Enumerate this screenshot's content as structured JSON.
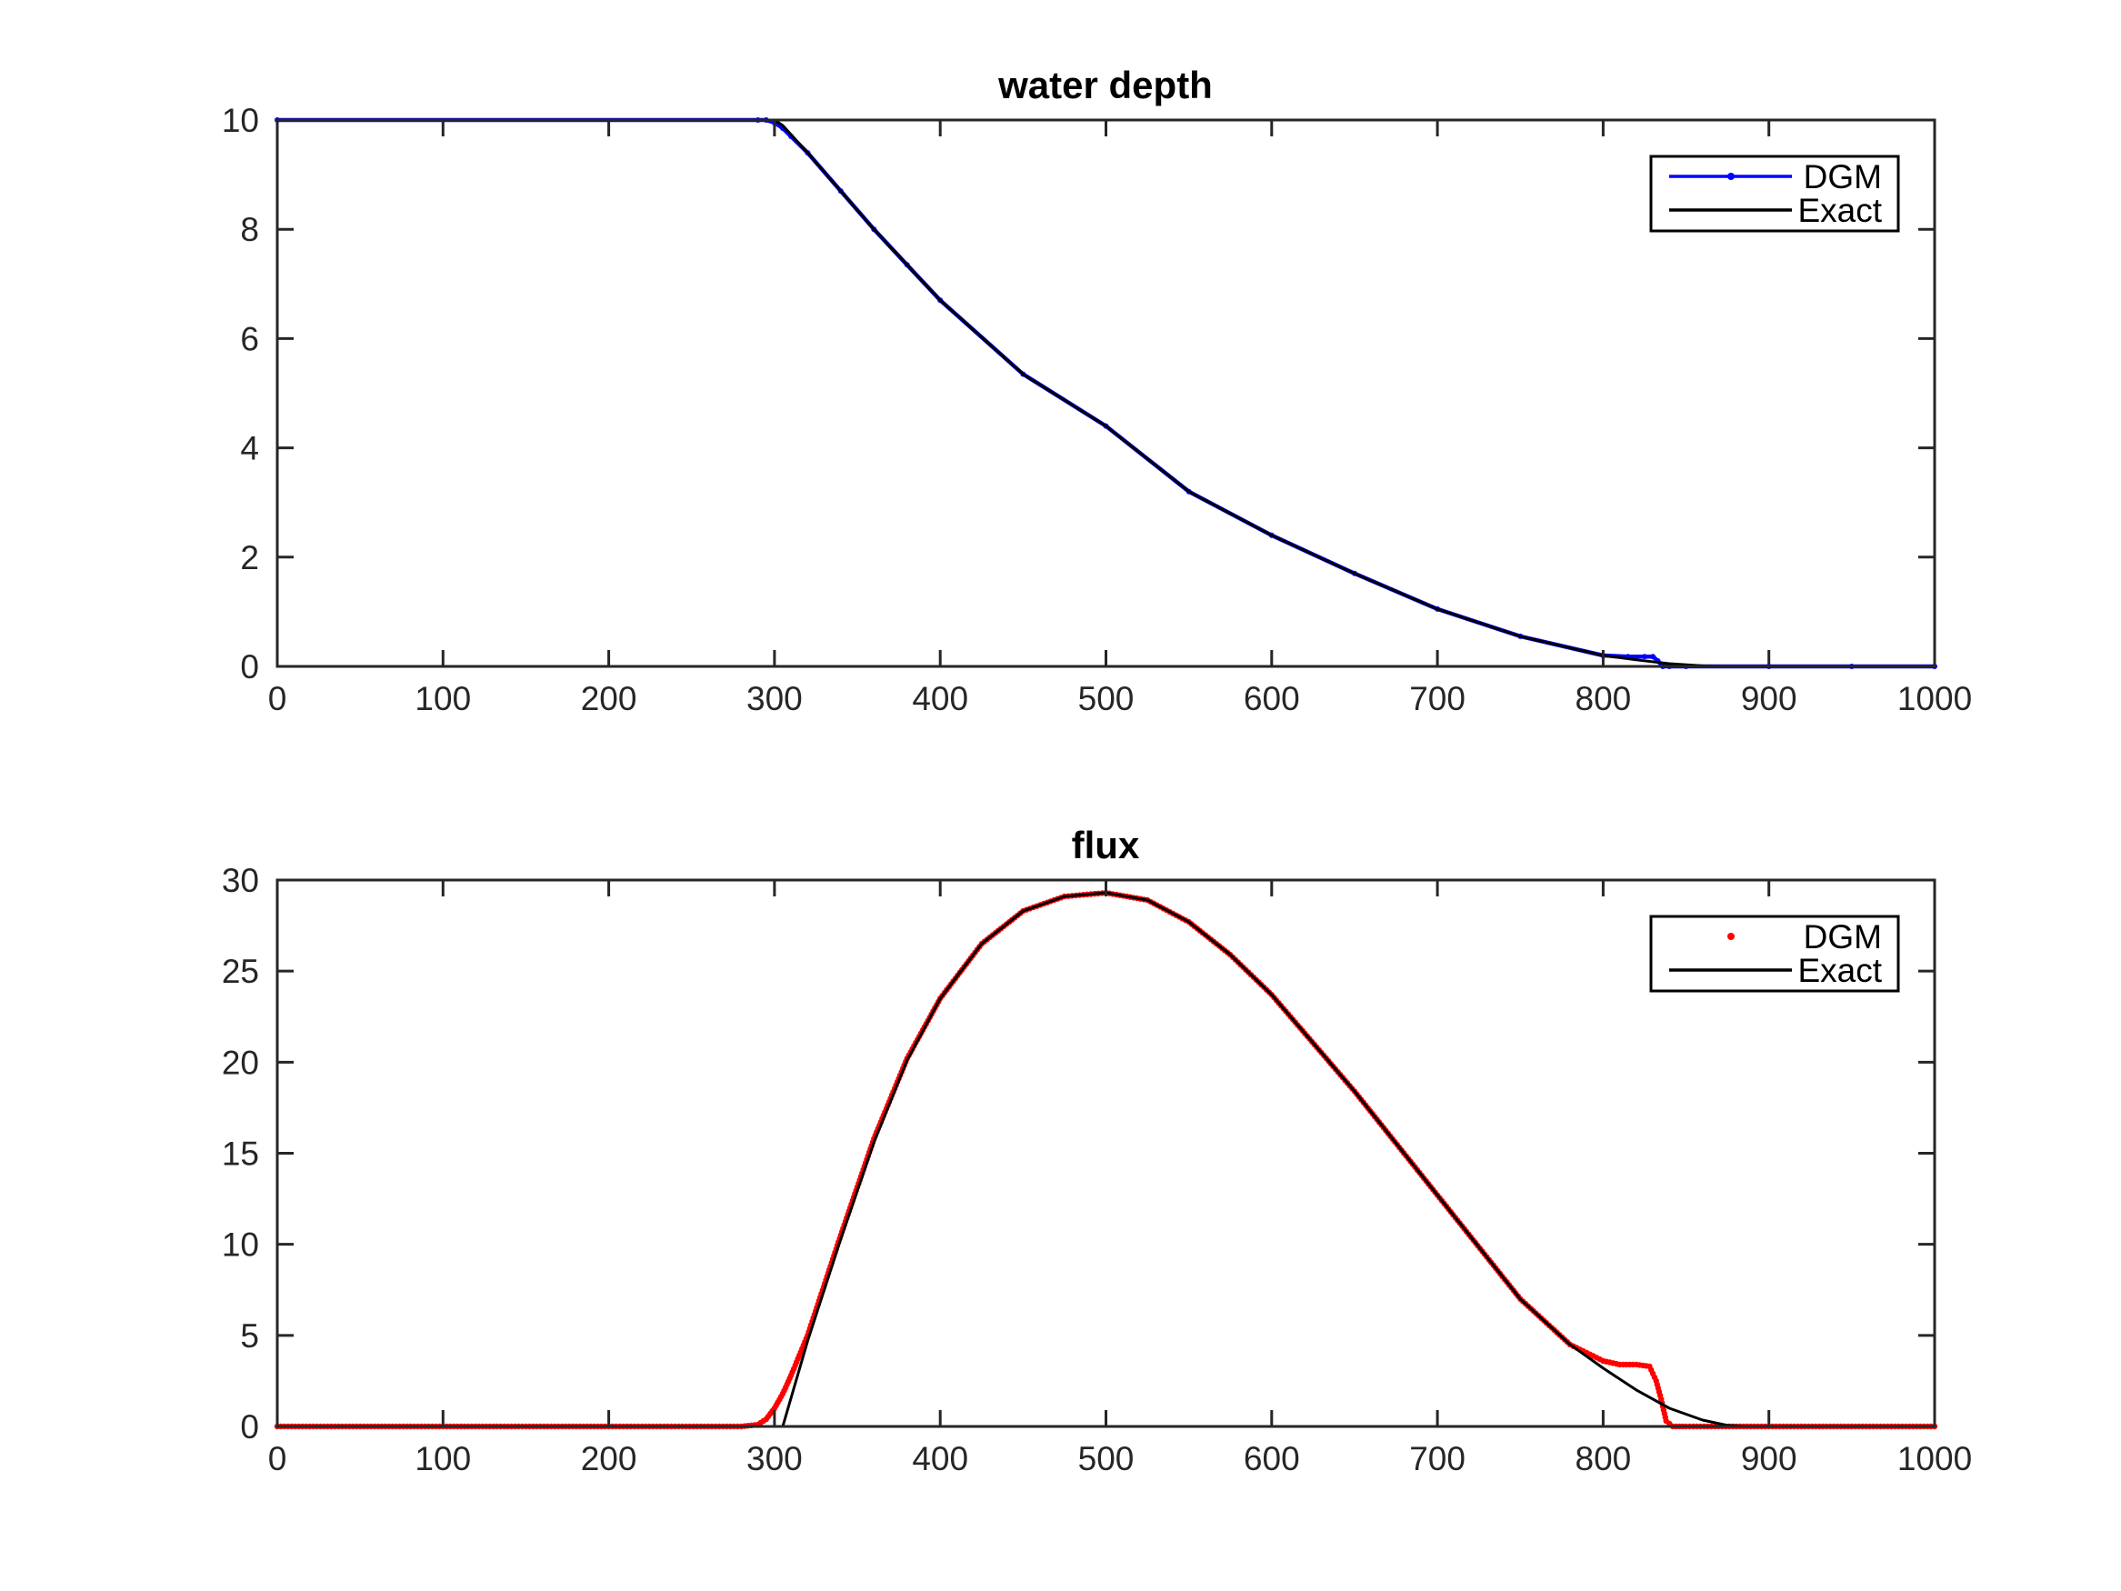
{
  "figure": {
    "background": "#ffffff",
    "axis_color": "#262626"
  },
  "chart_data": [
    {
      "type": "line",
      "title": "water depth",
      "xlabel": "",
      "ylabel": "",
      "xlim": [
        0,
        1000
      ],
      "ylim": [
        0,
        10
      ],
      "xticks": [
        0,
        100,
        200,
        300,
        400,
        500,
        600,
        700,
        800,
        900,
        1000
      ],
      "yticks": [
        0,
        2,
        4,
        6,
        8,
        10
      ],
      "grid": false,
      "legend_position": "top-right",
      "series": [
        {
          "name": "DGM",
          "style": "line-dot",
          "color": "#0000ff",
          "x": [
            0,
            290,
            295,
            300,
            305,
            310,
            320,
            340,
            360,
            380,
            400,
            450,
            500,
            550,
            600,
            650,
            700,
            750,
            800,
            815,
            825,
            830,
            833,
            836,
            840,
            850,
            900,
            950,
            1000
          ],
          "y": [
            10,
            10,
            10,
            9.95,
            9.85,
            9.7,
            9.4,
            8.7,
            8.0,
            7.35,
            6.7,
            5.35,
            4.4,
            3.2,
            2.4,
            1.7,
            1.05,
            0.55,
            0.2,
            0.18,
            0.18,
            0.18,
            0.1,
            0.0,
            0.0,
            0.0,
            0.0,
            0.0,
            0.0
          ]
        },
        {
          "name": "Exact",
          "style": "line",
          "color": "#000000",
          "x": [
            0,
            300,
            305,
            320,
            340,
            360,
            380,
            400,
            450,
            500,
            550,
            600,
            650,
            700,
            750,
            800,
            820,
            840,
            860,
            870,
            880,
            1000
          ],
          "y": [
            10,
            10,
            9.9,
            9.4,
            8.7,
            8.0,
            7.35,
            6.7,
            5.35,
            4.4,
            3.2,
            2.4,
            1.7,
            1.05,
            0.55,
            0.2,
            0.12,
            0.05,
            0.01,
            0.0,
            0.0,
            0.0
          ]
        }
      ]
    },
    {
      "type": "line",
      "title": "flux",
      "xlabel": "",
      "ylabel": "",
      "xlim": [
        0,
        1000
      ],
      "ylim": [
        0,
        30
      ],
      "xticks": [
        0,
        100,
        200,
        300,
        400,
        500,
        600,
        700,
        800,
        900,
        1000
      ],
      "yticks": [
        0,
        5,
        10,
        15,
        20,
        25,
        30
      ],
      "grid": false,
      "legend_position": "top-right",
      "series": [
        {
          "name": "DGM",
          "style": "dots",
          "color": "#ff0000",
          "x": [
            0,
            100,
            200,
            280,
            290,
            295,
            300,
            305,
            310,
            320,
            340,
            360,
            380,
            400,
            425,
            450,
            475,
            500,
            525,
            550,
            575,
            600,
            650,
            700,
            750,
            780,
            800,
            810,
            820,
            828,
            832,
            835,
            838,
            842,
            850,
            900,
            950,
            1000
          ],
          "y": [
            0,
            0,
            0,
            0,
            0.1,
            0.4,
            1.0,
            1.8,
            2.8,
            5.0,
            10.5,
            15.8,
            20.2,
            23.5,
            26.5,
            28.3,
            29.1,
            29.3,
            28.9,
            27.7,
            25.9,
            23.7,
            18.4,
            12.7,
            7.0,
            4.5,
            3.6,
            3.4,
            3.4,
            3.3,
            2.5,
            1.5,
            0.3,
            0.0,
            0.0,
            0.0,
            0.0,
            0.0
          ]
        },
        {
          "name": "Exact",
          "style": "line",
          "color": "#000000",
          "x": [
            0,
            305,
            320,
            340,
            360,
            380,
            400,
            425,
            450,
            475,
            500,
            525,
            550,
            575,
            600,
            650,
            700,
            750,
            780,
            800,
            820,
            840,
            860,
            875,
            885,
            1000
          ],
          "y": [
            0,
            0,
            4.7,
            10.3,
            15.6,
            20.1,
            23.5,
            26.5,
            28.3,
            29.1,
            29.3,
            28.9,
            27.7,
            25.9,
            23.7,
            18.4,
            12.7,
            7.0,
            4.5,
            3.2,
            2.0,
            1.0,
            0.35,
            0.06,
            0.0,
            0.0
          ]
        }
      ]
    }
  ]
}
